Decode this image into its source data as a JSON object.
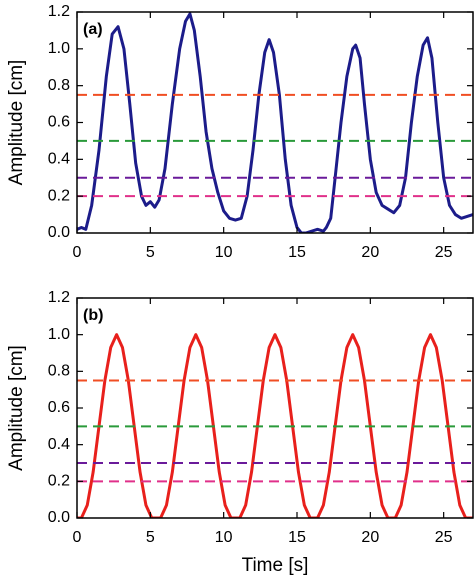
{
  "chart_data": [
    {
      "type": "line",
      "annotation": "(a)",
      "ylabel": "Amplitude [cm]",
      "xlim": [
        0,
        27
      ],
      "xticks": [
        0,
        5,
        10,
        15,
        20,
        25
      ],
      "ylim": [
        0,
        1.2
      ],
      "yticks": [
        {
          "value": 0,
          "label": "0.0"
        },
        0.2,
        0.4,
        0.6,
        0.8,
        {
          "value": 1,
          "label": "1.0"
        },
        1.2
      ],
      "series": [
        {
          "color": "#1c1c8a",
          "style": "solid",
          "x": [
            0,
            0.3,
            0.6,
            1.0,
            1.5,
            2.0,
            2.4,
            2.8,
            3.2,
            3.6,
            4.0,
            4.4,
            4.7,
            5.0,
            5.3,
            5.6,
            6.0,
            6.5,
            7.0,
            7.4,
            7.7,
            8.0,
            8.4,
            8.8,
            9.2,
            9.6,
            10.0,
            10.4,
            10.8,
            11.2,
            11.6,
            12.0,
            12.4,
            12.8,
            13.1,
            13.4,
            13.8,
            14.2,
            14.6,
            15.0,
            15.3,
            15.6,
            16.0,
            16.4,
            16.8,
            17.0,
            17.3,
            17.6,
            18.0,
            18.4,
            18.8,
            19.0,
            19.3,
            19.6,
            20.0,
            20.4,
            20.8,
            21.2,
            21.6,
            22.0,
            22.4,
            22.8,
            23.2,
            23.6,
            23.9,
            24.2,
            24.6,
            25.0,
            25.4,
            25.8,
            26.2,
            26.6,
            27.0
          ],
          "values": [
            0.02,
            0.03,
            0.02,
            0.15,
            0.45,
            0.85,
            1.08,
            1.12,
            1.0,
            0.7,
            0.38,
            0.2,
            0.15,
            0.17,
            0.14,
            0.18,
            0.35,
            0.7,
            1.0,
            1.15,
            1.19,
            1.1,
            0.85,
            0.55,
            0.35,
            0.22,
            0.12,
            0.08,
            0.07,
            0.08,
            0.2,
            0.45,
            0.75,
            0.98,
            1.05,
            0.98,
            0.75,
            0.4,
            0.15,
            0.03,
            0.0,
            0.0,
            0.01,
            0.02,
            0.01,
            0.03,
            0.08,
            0.3,
            0.6,
            0.85,
            1.0,
            1.02,
            0.95,
            0.7,
            0.4,
            0.22,
            0.15,
            0.13,
            0.11,
            0.15,
            0.3,
            0.6,
            0.85,
            1.02,
            1.06,
            0.95,
            0.6,
            0.3,
            0.15,
            0.1,
            0.08,
            0.09,
            0.1
          ]
        },
        {
          "color": "#f04e23",
          "style": "dashed",
          "x": [
            0,
            27
          ],
          "values": [
            0.75,
            0.75
          ]
        },
        {
          "color": "#2a9a3a",
          "style": "dashed",
          "x": [
            0,
            27
          ],
          "values": [
            0.5,
            0.5
          ]
        },
        {
          "color": "#6a1a9a",
          "style": "dashed",
          "x": [
            0,
            27
          ],
          "values": [
            0.3,
            0.3
          ]
        },
        {
          "color": "#e0308a",
          "style": "dashed",
          "x": [
            0,
            27
          ],
          "values": [
            0.2,
            0.2
          ]
        }
      ]
    },
    {
      "type": "line",
      "annotation": "(b)",
      "ylabel": "Amplitude [cm]",
      "xlabel": "Time [s]",
      "xlim": [
        0,
        27
      ],
      "xticks": [
        0,
        5,
        10,
        15,
        20,
        25
      ],
      "ylim": [
        0,
        1.2
      ],
      "yticks": [
        {
          "value": 0,
          "label": "0.0"
        },
        0.2,
        0.4,
        0.6,
        0.8,
        {
          "value": 1,
          "label": "1.0"
        },
        1.2
      ],
      "series": [
        {
          "color": "#e8201c",
          "style": "solid",
          "x": [
            0,
            0.3,
            0.7,
            1.1,
            1.5,
            1.9,
            2.3,
            2.7,
            3.1,
            3.5,
            3.9,
            4.3,
            4.7,
            5.1,
            5.7,
            6.1,
            6.5,
            6.9,
            7.3,
            7.7,
            8.1,
            8.5,
            8.9,
            9.3,
            9.7,
            10.1,
            10.5,
            11.1,
            11.5,
            11.9,
            12.3,
            12.7,
            13.1,
            13.5,
            13.9,
            14.3,
            14.7,
            15.1,
            15.5,
            15.9,
            16.4,
            16.8,
            17.2,
            17.6,
            18.0,
            18.4,
            18.8,
            19.2,
            19.6,
            20.0,
            20.4,
            20.8,
            21.2,
            21.7,
            22.1,
            22.5,
            22.9,
            23.3,
            23.7,
            24.1,
            24.5,
            24.9,
            25.3,
            25.7,
            26.1,
            26.5,
            27
          ],
          "values": [
            0,
            0,
            0.07,
            0.25,
            0.5,
            0.75,
            0.93,
            1,
            0.93,
            0.75,
            0.5,
            0.25,
            0.07,
            0,
            0,
            0.07,
            0.25,
            0.5,
            0.75,
            0.93,
            1,
            0.93,
            0.75,
            0.5,
            0.25,
            0.07,
            0,
            0,
            0.07,
            0.25,
            0.5,
            0.75,
            0.93,
            1,
            0.93,
            0.75,
            0.5,
            0.25,
            0.07,
            0,
            0,
            0.07,
            0.25,
            0.5,
            0.75,
            0.93,
            1,
            0.93,
            0.75,
            0.5,
            0.25,
            0.07,
            0,
            0,
            0.07,
            0.25,
            0.5,
            0.75,
            0.93,
            1,
            0.93,
            0.75,
            0.5,
            0.25,
            0.07,
            0,
            0
          ]
        },
        {
          "color": "#f04e23",
          "style": "dashed",
          "x": [
            0,
            27
          ],
          "values": [
            0.75,
            0.75
          ]
        },
        {
          "color": "#2a9a3a",
          "style": "dashed",
          "x": [
            0,
            27
          ],
          "values": [
            0.5,
            0.5
          ]
        },
        {
          "color": "#6a1a9a",
          "style": "dashed",
          "x": [
            0,
            27
          ],
          "values": [
            0.3,
            0.3
          ]
        },
        {
          "color": "#e0308a",
          "style": "dashed",
          "x": [
            0,
            27
          ],
          "values": [
            0.2,
            0.2
          ]
        }
      ]
    }
  ]
}
